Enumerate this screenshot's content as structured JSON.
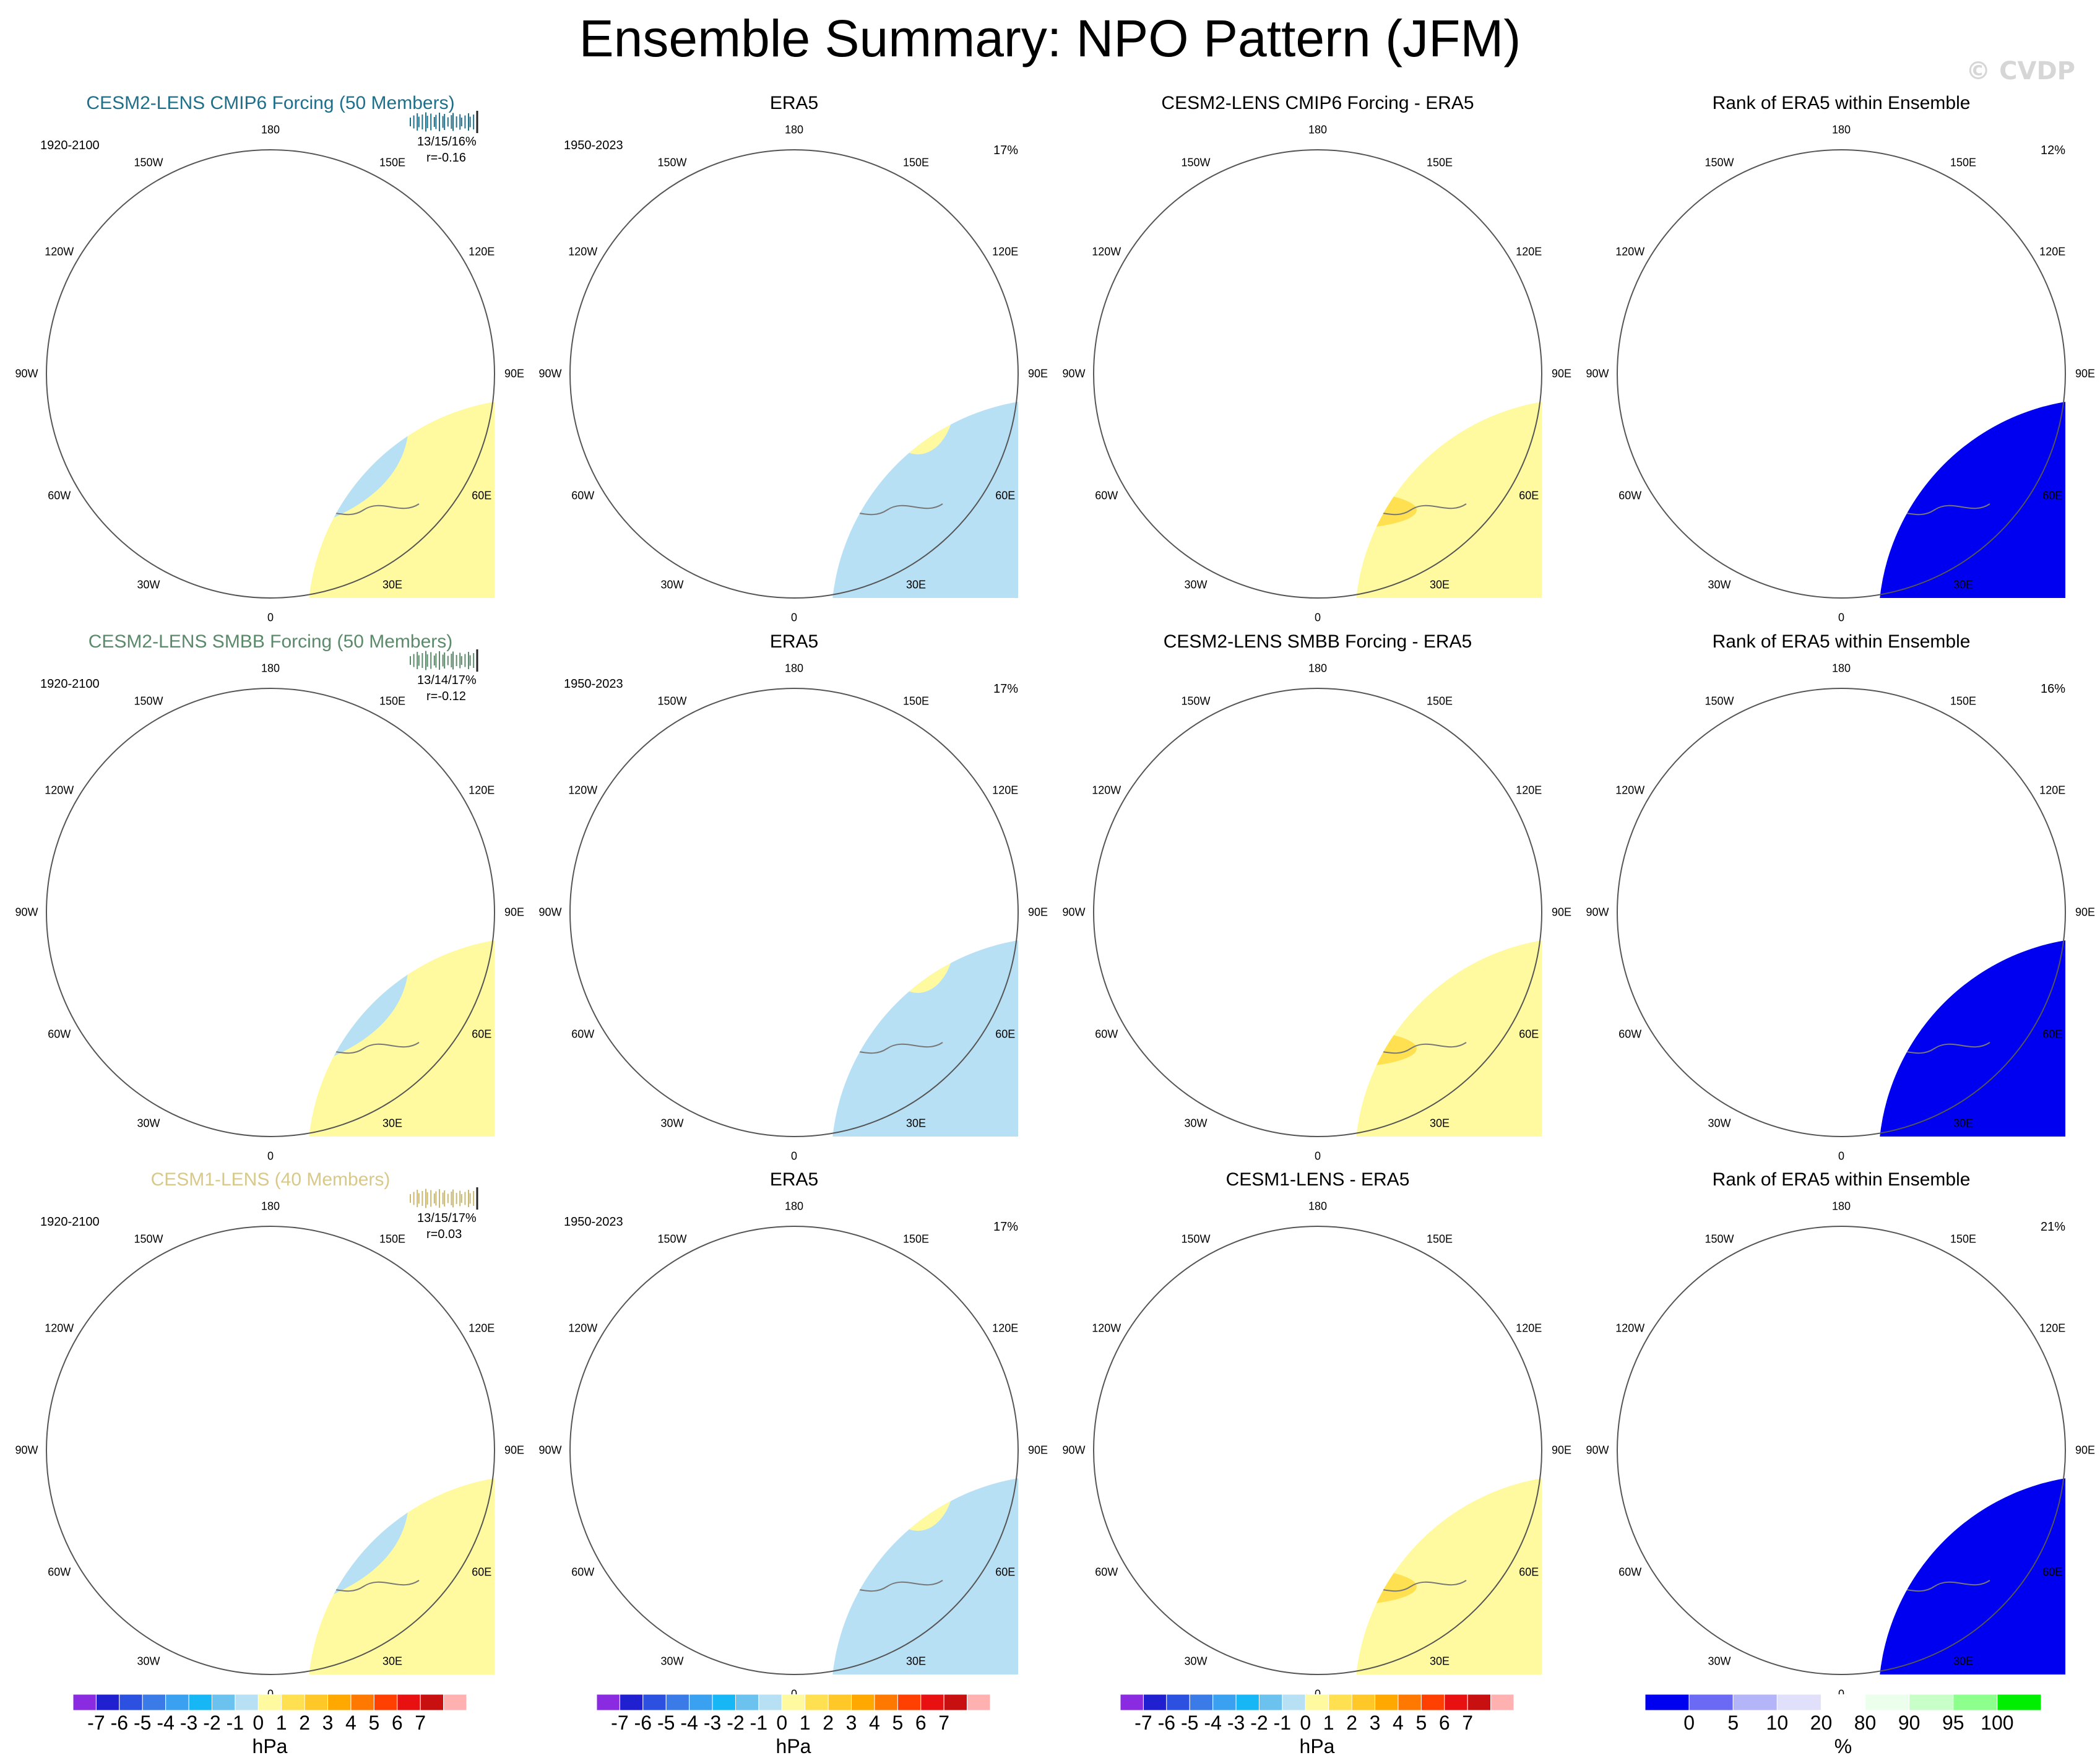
{
  "title": "Ensemble Summary: NPO Pattern (JFM)",
  "watermark": "© CVDP",
  "longitude_labels": [
    "180",
    "150E",
    "120E",
    "90E",
    "60E",
    "30E",
    "0",
    "30W",
    "60W",
    "90W",
    "120W",
    "150W"
  ],
  "rows": [
    {
      "model": {
        "title": "CESM2-LENS CMIP6 Forcing (50 Members)",
        "title_color": "#1e6f8a",
        "period": "1920-2100",
        "stats": "13/15/16%",
        "corr": "r=-0.16",
        "tick_color": "#1e6f8a"
      },
      "obs": {
        "title": "ERA5",
        "period": "1950-2023",
        "pct": "17%"
      },
      "diff": {
        "title": "CESM2-LENS CMIP6 Forcing - ERA5"
      },
      "rank": {
        "title": "Rank of ERA5 within Ensemble",
        "pct": "12%"
      }
    },
    {
      "model": {
        "title": "CESM2-LENS SMBB Forcing (50 Members)",
        "title_color": "#5b8a6a",
        "period": "1920-2100",
        "stats": "13/14/17%",
        "corr": "r=-0.12",
        "tick_color": "#5b8a6a"
      },
      "obs": {
        "title": "ERA5",
        "period": "1950-2023",
        "pct": "17%"
      },
      "diff": {
        "title": "CESM2-LENS SMBB Forcing - ERA5"
      },
      "rank": {
        "title": "Rank of ERA5 within Ensemble",
        "pct": "16%"
      }
    },
    {
      "model": {
        "title": "CESM1-LENS (40 Members)",
        "title_color": "#d8c98a",
        "period": "1920-2100",
        "stats": "13/15/17%",
        "corr": "r=0.03",
        "tick_color": "#c8b870"
      },
      "obs": {
        "title": "ERA5",
        "period": "1950-2023",
        "pct": "17%"
      },
      "diff": {
        "title": "CESM1-LENS - ERA5"
      },
      "rank": {
        "title": "Rank of ERA5 within Ensemble",
        "pct": "21%"
      }
    }
  ],
  "colorbars": {
    "hpa": {
      "label": "hPa",
      "colors": [
        "#8a2be2",
        "#2020d0",
        "#2c50e0",
        "#3a7be8",
        "#3aa0f0",
        "#17b7f5",
        "#6cc2ee",
        "#b8e0f5",
        "#fffaa0",
        "#ffe050",
        "#ffc828",
        "#ffa800",
        "#ff7800",
        "#ff4000",
        "#e81010",
        "#c81010",
        "#ffb0b0"
      ],
      "ticks": [
        "-7",
        "-6",
        "-5",
        "-4",
        "-3",
        "-2",
        "-1",
        "0",
        "1",
        "2",
        "3",
        "4",
        "5",
        "6",
        "7"
      ]
    },
    "rank": {
      "label": "%",
      "colors": [
        "#0000f0",
        "#6a6af5",
        "#b4b4f8",
        "#e0e0fa",
        "#ffffff",
        "#ecffec",
        "#c8ffc8",
        "#8cff8c",
        "#00ee00"
      ],
      "ticks": [
        "0",
        "5",
        "10",
        "20",
        "80",
        "90",
        "95",
        "100"
      ]
    }
  }
}
